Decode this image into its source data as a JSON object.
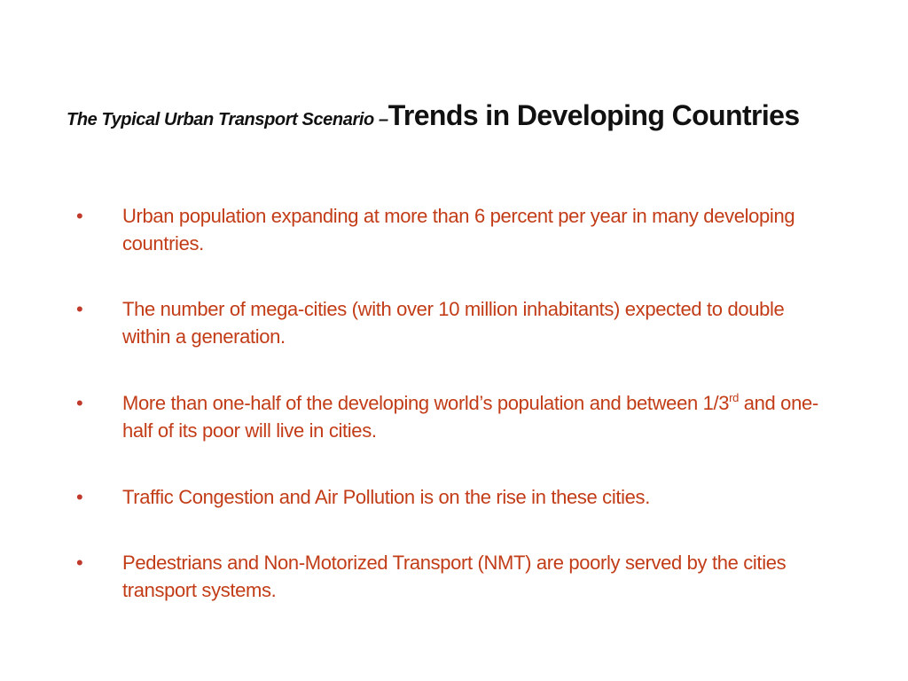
{
  "slide": {
    "title_prefix": "The Typical Urban Transport Scenario –",
    "title_main": "Trends in Developing Countries",
    "bullet_marker": "•",
    "bullets": [
      {
        "text": "Urban population expanding at more than 6 percent per year in many developing countries."
      },
      {
        "text": "The number of mega-cities (with over 10 million inhabitants) expected to double within a generation."
      },
      {
        "text_before": "More than one-half of the developing world’s population and between 1/3",
        "superscript": "rd",
        "text_after": " and one-half of its poor will live in cities."
      },
      {
        "text": "Traffic Congestion and Air Pollution is on the rise in these cities."
      },
      {
        "text": "Pedestrians and Non-Motorized Transport (NMT) are poorly served by the cities transport systems."
      }
    ],
    "colors": {
      "title": "#111111",
      "bullet_text": "#c23c17",
      "background": "#ffffff"
    }
  }
}
